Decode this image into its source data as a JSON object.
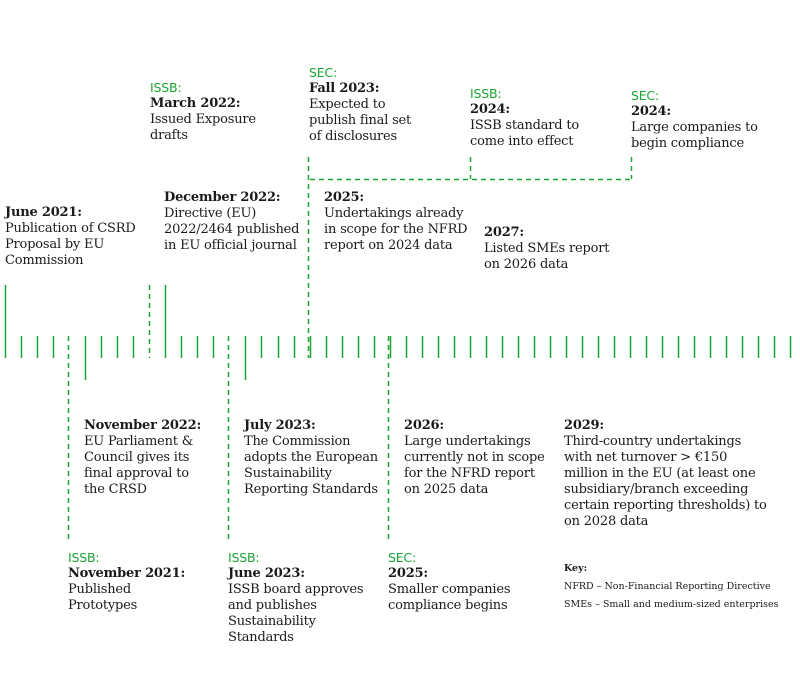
{
  "colors": {
    "accent": "#1aa532",
    "text": "#1a1a1a"
  },
  "events": [
    {
      "id": "june-2021",
      "org": "",
      "date": "June 2021:",
      "desc": "Publication of CSRD\nProposal by EU\nCommission"
    },
    {
      "id": "march-2022",
      "org": "ISSB:",
      "date": "March 2022:",
      "desc": "Issued Exposure\ndrafts"
    },
    {
      "id": "fall-2023",
      "org": "SEC:",
      "date": "Fall 2023:",
      "desc": "Expected to\npublish final set\nof disclosures"
    },
    {
      "id": "issb-2024",
      "org": "ISSB:",
      "date": "2024:",
      "desc": "ISSB  standard to\ncome into effect"
    },
    {
      "id": "sec-2024",
      "org": "SEC:",
      "date": "2024:",
      "desc": "Large companies to\nbegin compliance"
    },
    {
      "id": "december-2022",
      "org": "",
      "date": "December 2022:",
      "desc": "Directive (EU)\n2022/2464 published\nin EU official journal"
    },
    {
      "id": "eu-2025",
      "org": "",
      "date": "2025:",
      "desc": "Undertakings already\nin scope for the NFRD\nreport on 2024 data"
    },
    {
      "id": "eu-2027",
      "org": "",
      "date": "2027:",
      "desc": "Listed SMEs report\non 2026 data"
    },
    {
      "id": "november-2022",
      "org": "",
      "date": "November 2022:",
      "desc": "EU Parliament &\nCouncil gives its\nfinal approval to\nthe CRSD"
    },
    {
      "id": "july-2023",
      "org": "",
      "date": "July 2023:",
      "desc": "The Commission\nadopts the European\nSustainability\nReporting Standards"
    },
    {
      "id": "eu-2026",
      "org": "",
      "date": "2026:",
      "desc": "Large undertakings\ncurrently not in scope\nfor the NFRD report\non 2025 data"
    },
    {
      "id": "eu-2029",
      "org": "",
      "date": "2029:",
      "desc": "Third-country undertakings\nwith net turnover > €150\nmillion in the EU (at least one\nsubsidiary/branch exceeding\ncertain reporting thresholds) to\non 2028 data"
    },
    {
      "id": "november-2021",
      "org": "ISSB:",
      "date": "November 2021:",
      "desc": "Published\nPrototypes"
    },
    {
      "id": "june-2023",
      "org": "ISSB:",
      "date": "June 2023:",
      "desc": "ISSB board approves\nand publishes\nSustainability\nStandards"
    },
    {
      "id": "sec-2025",
      "org": "SEC:",
      "date": "2025:",
      "desc": "Smaller companies\ncompliance begins"
    }
  ],
  "key": {
    "title": "Key:",
    "items": [
      "NFRD – Non-Financial Reporting Directive",
      "SMEs – Small and medium-sized enterprises"
    ]
  }
}
